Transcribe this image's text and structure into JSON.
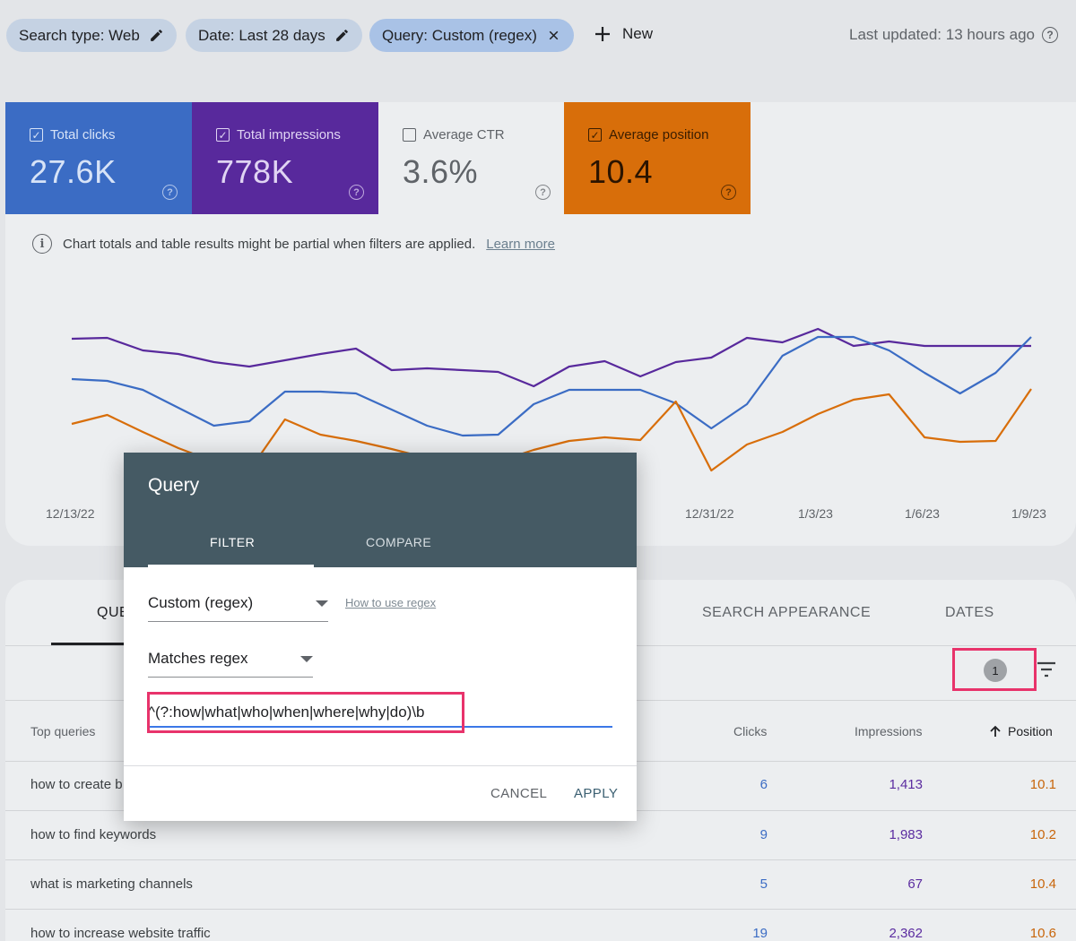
{
  "filter_bar": {
    "chips": [
      {
        "label": "Search type: Web",
        "icon": "pencil-icon"
      },
      {
        "label": "Date: Last 28 days",
        "icon": "pencil-icon"
      },
      {
        "label": "Query: Custom (regex)",
        "icon": "close-icon"
      }
    ],
    "new_label": "New",
    "last_updated": "Last updated: 13 hours ago"
  },
  "metrics": [
    {
      "label": "Total clicks",
      "value": "27.6K",
      "checked": true,
      "color": "#3b6cc4"
    },
    {
      "label": "Total impressions",
      "value": "778K",
      "checked": true,
      "color": "#58299c"
    },
    {
      "label": "Average CTR",
      "value": "3.6%",
      "checked": false,
      "color": "#eceef0"
    },
    {
      "label": "Average position",
      "value": "10.4",
      "checked": true,
      "color": "#d86e0a"
    }
  ],
  "notice": {
    "text": "Chart totals and table results might be partial when filters are applied.",
    "link": "Learn more"
  },
  "chart_data": {
    "type": "line",
    "x": [
      "12/13/22",
      "12/14/22",
      "12/15/22",
      "12/16/22",
      "12/17/22",
      "12/18/22",
      "12/19/22",
      "12/20/22",
      "12/21/22",
      "12/22/22",
      "12/23/22",
      "12/24/22",
      "12/25/22",
      "12/26/22",
      "12/27/22",
      "12/28/22",
      "12/29/22",
      "12/30/22",
      "12/31/22",
      "1/1/23",
      "1/2/23",
      "1/3/23",
      "1/4/23",
      "1/5/23",
      "1/6/23",
      "1/7/23",
      "1/8/23",
      "1/9/23"
    ],
    "x_tick_labels": [
      "12/13/22",
      "12/31/22",
      "1/3/23",
      "1/6/23",
      "1/9/23"
    ],
    "series": [
      {
        "color": "#58299c",
        "values": [
          378,
          377,
          391,
          395,
          404,
          409,
          402,
          395,
          389,
          413,
          411,
          413,
          415,
          431,
          409,
          403,
          420,
          404,
          399,
          377,
          382,
          367,
          386,
          381,
          386,
          386,
          386,
          386
        ]
      },
      {
        "color": "#3b6cc4",
        "values": [
          423,
          425,
          435,
          455,
          475,
          470,
          437,
          437,
          439,
          457,
          475,
          486,
          485,
          451,
          435,
          435,
          435,
          450,
          478,
          451,
          397,
          376,
          376,
          391,
          416,
          439,
          416,
          376
        ]
      },
      {
        "color": "#d86e0a",
        "values": [
          473,
          463,
          482,
          500,
          515,
          525,
          468,
          485,
          492,
          501,
          511,
          521,
          515,
          502,
          492,
          488,
          491,
          448,
          525,
          496,
          482,
          462,
          446,
          440,
          488,
          493,
          492,
          434
        ]
      }
    ]
  },
  "table_card": {
    "tabs": [
      "QUERIES",
      "SEARCH APPEARANCE",
      "DATES"
    ],
    "filter_count": "1",
    "headers": {
      "query": "Top queries",
      "clicks": "Clicks",
      "impressions": "Impressions",
      "position": "Position"
    },
    "rows": [
      {
        "query": "how to create b",
        "clicks": "6",
        "impressions": "1,413",
        "position": "10.1"
      },
      {
        "query": "how to find keywords",
        "clicks": "9",
        "impressions": "1,983",
        "position": "10.2"
      },
      {
        "query": "what is marketing channels",
        "clicks": "5",
        "impressions": "67",
        "position": "10.4"
      },
      {
        "query": "how to increase website traffic",
        "clicks": "19",
        "impressions": "2,362",
        "position": "10.6"
      }
    ]
  },
  "dialog": {
    "title": "Query",
    "tab_filter": "FILTER",
    "tab_compare": "COMPARE",
    "type_select": "Custom (regex)",
    "regex_help_link": "How to use regex",
    "match_select": "Matches regex",
    "regex_value": "^(?:how|what|who|when|where|why|do)\\b",
    "cancel_label": "CANCEL",
    "apply_label": "APPLY"
  }
}
